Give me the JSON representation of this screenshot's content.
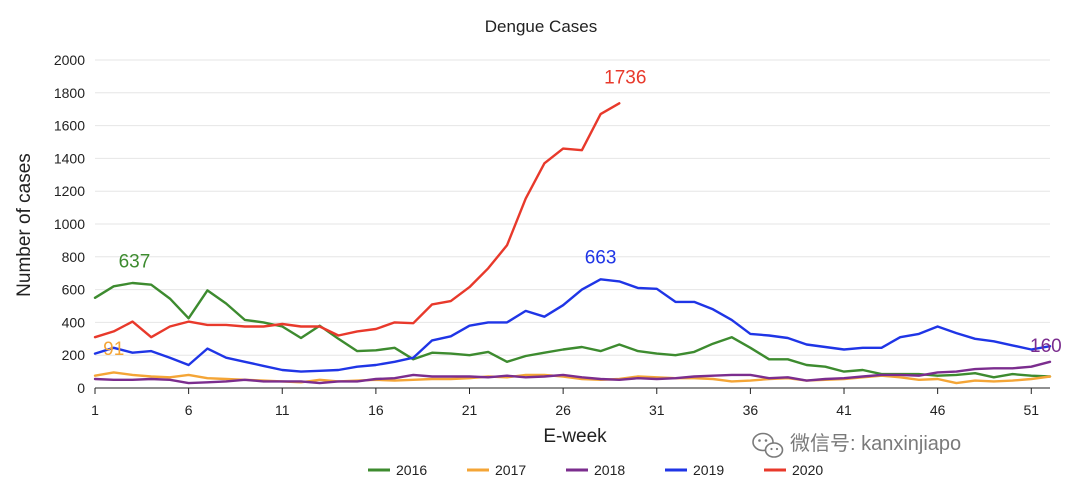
{
  "chart_data": {
    "type": "line",
    "title": "Dengue Cases",
    "xlabel": "E-week",
    "ylabel": "Number of cases",
    "xlim": [
      1,
      52
    ],
    "ylim": [
      0,
      2000
    ],
    "x_ticks": [
      1,
      6,
      11,
      16,
      21,
      26,
      31,
      36,
      41,
      46,
      51
    ],
    "y_ticks": [
      0,
      200,
      400,
      600,
      800,
      1000,
      1200,
      1400,
      1600,
      1800,
      2000
    ],
    "grid": "horizontal",
    "legend_position": "bottom",
    "series": [
      {
        "name": "2016",
        "color": "#3d8b2f",
        "values": [
          550,
          620,
          640,
          630,
          545,
          425,
          595,
          515,
          415,
          400,
          375,
          305,
          380,
          300,
          225,
          230,
          245,
          175,
          215,
          210,
          200,
          220,
          160,
          195,
          215,
          235,
          250,
          225,
          265,
          225,
          210,
          200,
          220,
          270,
          310,
          245,
          175,
          175,
          140,
          130,
          100,
          110,
          85,
          85,
          85,
          75,
          80,
          90,
          65,
          85,
          75,
          70
        ]
      },
      {
        "name": "2017",
        "color": "#f4a536",
        "values": [
          75,
          95,
          80,
          70,
          65,
          80,
          60,
          55,
          50,
          45,
          40,
          35,
          50,
          40,
          45,
          50,
          45,
          50,
          55,
          55,
          60,
          70,
          65,
          80,
          80,
          70,
          55,
          50,
          55,
          70,
          65,
          60,
          60,
          55,
          40,
          45,
          55,
          60,
          45,
          50,
          55,
          65,
          75,
          65,
          50,
          55,
          30,
          45,
          40,
          45,
          55,
          70
        ]
      },
      {
        "name": "2018",
        "color": "#7b2d8e",
        "values": [
          55,
          50,
          50,
          55,
          50,
          30,
          35,
          40,
          50,
          40,
          40,
          40,
          30,
          40,
          40,
          55,
          60,
          80,
          70,
          70,
          70,
          65,
          75,
          65,
          70,
          80,
          65,
          55,
          50,
          60,
          55,
          60,
          70,
          75,
          80,
          80,
          60,
          65,
          45,
          55,
          60,
          70,
          80,
          80,
          75,
          95,
          100,
          115,
          120,
          120,
          130,
          160
        ]
      },
      {
        "name": "2019",
        "color": "#1f35e6",
        "values": [
          210,
          245,
          215,
          225,
          185,
          140,
          240,
          185,
          160,
          135,
          110,
          100,
          105,
          110,
          130,
          140,
          160,
          185,
          290,
          315,
          380,
          400,
          400,
          470,
          435,
          505,
          600,
          663,
          650,
          610,
          605,
          525,
          525,
          480,
          415,
          330,
          320,
          305,
          265,
          250,
          235,
          245,
          245,
          310,
          330,
          375,
          335,
          300,
          285,
          260,
          235,
          255
        ]
      },
      {
        "name": "2020",
        "color": "#e8392b",
        "values": [
          310,
          345,
          405,
          310,
          375,
          405,
          385,
          385,
          375,
          375,
          390,
          375,
          375,
          320,
          345,
          360,
          400,
          395,
          510,
          530,
          615,
          730,
          870,
          1155,
          1370,
          1460,
          1450,
          1670,
          1736
        ]
      }
    ],
    "annotations": [
      {
        "series": "2016",
        "x": 3,
        "y": 637,
        "text": "637"
      },
      {
        "series": "2017",
        "x": 2,
        "y": 91,
        "text": "91"
      },
      {
        "series": "2018",
        "x": 52,
        "y": 160,
        "text": "160"
      },
      {
        "series": "2019",
        "x": 28,
        "y": 663,
        "text": "663"
      },
      {
        "series": "2020",
        "x": 29,
        "y": 1736,
        "text": "1736"
      }
    ]
  },
  "watermark": {
    "icon": "wechat-icon",
    "text": "微信号: kanxinjiapo"
  }
}
